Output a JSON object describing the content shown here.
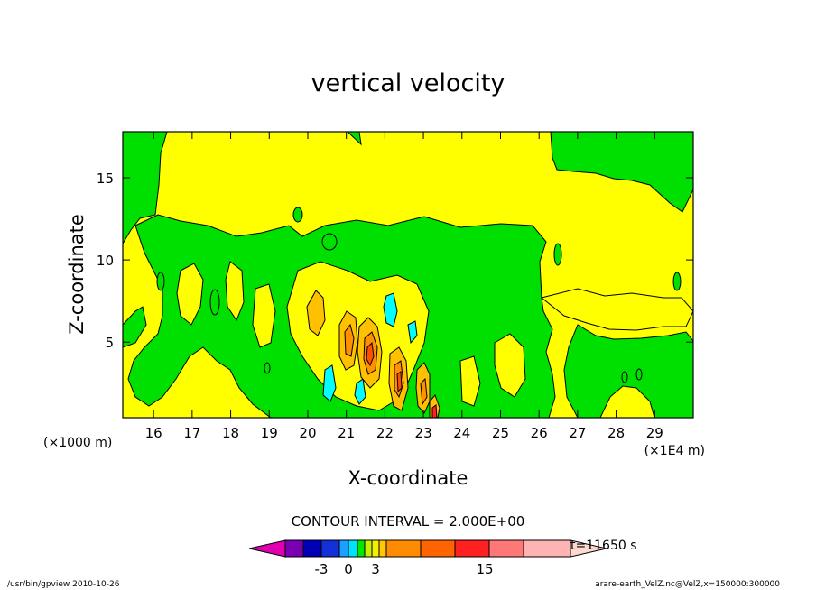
{
  "chart_data": {
    "type": "heatmap",
    "title": "vertical velocity",
    "xlabel": "X-coordinate",
    "ylabel": "Z-coordinate",
    "x_unit_left": "(×1000 m)",
    "x_unit_right": "(×1E4 m)",
    "x_ticks": [
      "16",
      "17",
      "18",
      "19",
      "20",
      "21",
      "22",
      "23",
      "24",
      "25",
      "26",
      "27",
      "28",
      "29"
    ],
    "y_ticks": [
      "5",
      "10",
      "15"
    ],
    "xlim": [
      15.2,
      30.0
    ],
    "ylim": [
      0.4,
      17.8
    ],
    "contour_interval": "CONTOUR INTERVAL = 2.000E+00",
    "time_label": "t=11650 s",
    "colorbar_labels": [
      "-3",
      "0",
      "3",
      "15"
    ],
    "colorbar_colors": [
      "#e000b0",
      "#7a00b4",
      "#0000b4",
      "#1430d8",
      "#1aa0ff",
      "#00e0ff",
      "#00e800",
      "#c8f000",
      "#f0f000",
      "#ffc800",
      "#ff8c00",
      "#ff6400",
      "#ff2020",
      "#ff7878",
      "#ffb4b4",
      "#ffd8d0"
    ],
    "colors": {
      "negative": "#00ffff",
      "near_zero_negative": "#00e000",
      "near_zero_positive": "#ffff00",
      "weak_positive": "#ffc000",
      "positive": "#ff7000",
      "strong_positive": "#ff2020"
    },
    "blobs": [
      {
        "x": 16.8,
        "y": 6.5,
        "level": -1
      },
      {
        "x": 18.3,
        "y": 7.0,
        "level": -1
      },
      {
        "x": 17.6,
        "y": 11.4,
        "level": -1
      },
      {
        "x": 19.6,
        "y": 3.8,
        "level": -1
      },
      {
        "x": 20.4,
        "y": 2.0,
        "level": -1
      },
      {
        "x": 20.05,
        "y": 6.2,
        "level": 2
      },
      {
        "x": 20.9,
        "y": 4.8,
        "level": 2
      },
      {
        "x": 20.9,
        "y": 5.2,
        "level": 4
      },
      {
        "x": 21.5,
        "y": 4.3,
        "level": 2
      },
      {
        "x": 21.5,
        "y": 4.0,
        "level": 4
      },
      {
        "x": 21.5,
        "y": 3.7,
        "level": 6
      },
      {
        "x": 22.0,
        "y": 6.5,
        "level": -2
      },
      {
        "x": 21.8,
        "y": 2.2,
        "level": -2
      },
      {
        "x": 22.25,
        "y": 2.7,
        "level": 2
      },
      {
        "x": 22.25,
        "y": 2.5,
        "level": 4
      },
      {
        "x": 22.25,
        "y": 2.4,
        "level": 6
      },
      {
        "x": 22.6,
        "y": 5.5,
        "level": -2
      },
      {
        "x": 22.9,
        "y": 1.8,
        "level": 2
      },
      {
        "x": 22.9,
        "y": 1.6,
        "level": 4
      },
      {
        "x": 23.2,
        "y": 0.9,
        "level": 6
      },
      {
        "x": 23.0,
        "y": 4.5,
        "level": -1
      },
      {
        "x": 20.2,
        "y": 2.3,
        "level": -2
      }
    ]
  }
}
